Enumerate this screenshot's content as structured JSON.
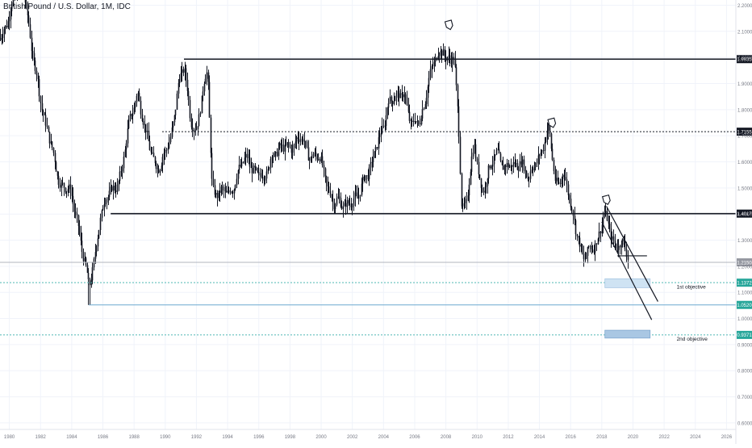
{
  "symbol_title": "British Pound / U.S. Dollar, 1M, IDC",
  "colors": {
    "candle": "#131722",
    "grid": "#f0f3fa",
    "axis_text": "#787b86",
    "price_label_bg": "#131722",
    "teal": "#26a69a",
    "teal_line": "#4fb8b4",
    "blue_line": "#6ca9cf",
    "box_fill_light": "#cfe3f3",
    "box_fill_dark": "#a9c7e3",
    "gray_label": "#9598a1"
  },
  "chart_data": {
    "type": "candlestick",
    "title": "British Pound / U.S. Dollar, 1M, IDC",
    "xlim": [
      1979.4,
      2026.6
    ],
    "ylim": [
      0.575,
      2.22
    ],
    "x_ticks": [
      "1980",
      "1982",
      "1984",
      "1986",
      "1988",
      "1990",
      "1992",
      "1994",
      "1996",
      "1998",
      "2000",
      "2002",
      "2004",
      "2006",
      "2008",
      "2010",
      "2012",
      "2014",
      "2016",
      "2018",
      "2020",
      "2022",
      "2024",
      "2026"
    ],
    "y_ticks": [
      "0.6000",
      "0.7000",
      "0.8000",
      "0.9000",
      "1.0000",
      "1.1000",
      "1.2000",
      "1.3000",
      "1.4000",
      "1.5000",
      "1.6000",
      "1.7000",
      "1.8000",
      "1.9000",
      "2.0000",
      "2.1000",
      "2.2000"
    ],
    "price_path": [
      [
        1979.4,
        2.09
      ],
      [
        1980.0,
        2.15
      ],
      [
        1980.8,
        2.32
      ],
      [
        1981.4,
        2.02
      ],
      [
        1981.8,
        1.92
      ],
      [
        1982.3,
        1.74
      ],
      [
        1982.8,
        1.62
      ],
      [
        1983.3,
        1.52
      ],
      [
        1983.8,
        1.48
      ],
      [
        1984.3,
        1.4
      ],
      [
        1984.8,
        1.22
      ],
      [
        1985.1,
        1.1
      ],
      [
        1985.4,
        1.22
      ],
      [
        1985.8,
        1.4
      ],
      [
        1986.5,
        1.48
      ],
      [
        1987.2,
        1.57
      ],
      [
        1987.8,
        1.78
      ],
      [
        1988.2,
        1.88
      ],
      [
        1988.7,
        1.7
      ],
      [
        1989.2,
        1.62
      ],
      [
        1989.7,
        1.58
      ],
      [
        1990.3,
        1.68
      ],
      [
        1990.8,
        1.9
      ],
      [
        1991.2,
        1.95
      ],
      [
        1991.6,
        1.77
      ],
      [
        1992.0,
        1.73
      ],
      [
        1992.7,
        1.95
      ],
      [
        1993.0,
        1.51
      ],
      [
        1993.5,
        1.47
      ],
      [
        1994.0,
        1.48
      ],
      [
        1994.8,
        1.57
      ],
      [
        1995.3,
        1.62
      ],
      [
        1995.8,
        1.56
      ],
      [
        1996.3,
        1.52
      ],
      [
        1996.8,
        1.64
      ],
      [
        1997.3,
        1.63
      ],
      [
        1997.8,
        1.67
      ],
      [
        1998.3,
        1.67
      ],
      [
        1998.8,
        1.68
      ],
      [
        1999.3,
        1.63
      ],
      [
        1999.8,
        1.61
      ],
      [
        2000.3,
        1.54
      ],
      [
        2000.8,
        1.44
      ],
      [
        2001.3,
        1.43
      ],
      [
        2001.8,
        1.46
      ],
      [
        2002.3,
        1.44
      ],
      [
        2002.8,
        1.56
      ],
      [
        2003.3,
        1.6
      ],
      [
        2003.8,
        1.7
      ],
      [
        2004.3,
        1.84
      ],
      [
        2004.8,
        1.83
      ],
      [
        2005.3,
        1.88
      ],
      [
        2005.8,
        1.73
      ],
      [
        2006.3,
        1.75
      ],
      [
        2006.8,
        1.9
      ],
      [
        2007.3,
        1.98
      ],
      [
        2007.8,
        2.05
      ],
      [
        2008.0,
        2.0
      ],
      [
        2008.5,
        1.98
      ],
      [
        2008.8,
        1.75
      ],
      [
        2009.0,
        1.43
      ],
      [
        2009.3,
        1.45
      ],
      [
        2009.8,
        1.65
      ],
      [
        2010.3,
        1.5
      ],
      [
        2010.8,
        1.56
      ],
      [
        2011.3,
        1.64
      ],
      [
        2011.8,
        1.58
      ],
      [
        2012.3,
        1.57
      ],
      [
        2012.8,
        1.62
      ],
      [
        2013.3,
        1.52
      ],
      [
        2013.8,
        1.61
      ],
      [
        2014.3,
        1.68
      ],
      [
        2014.6,
        1.71
      ],
      [
        2015.0,
        1.52
      ],
      [
        2015.5,
        1.56
      ],
      [
        2016.0,
        1.42
      ],
      [
        2016.5,
        1.32
      ],
      [
        2016.8,
        1.22
      ],
      [
        2017.3,
        1.26
      ],
      [
        2017.8,
        1.33
      ],
      [
        2018.1,
        1.4
      ],
      [
        2018.4,
        1.34
      ],
      [
        2018.8,
        1.29
      ],
      [
        2019.2,
        1.3
      ],
      [
        2019.5,
        1.25
      ],
      [
        2019.7,
        1.215
      ]
    ],
    "lows": [
      [
        1985.1,
        1.052
      ],
      [
        2016.8,
        1.198
      ]
    ],
    "horizontal_levels": [
      {
        "price": 1.9935,
        "label": "1.9935",
        "style": "solid-black",
        "from_x": 1991.2
      },
      {
        "price": 1.7155,
        "label": "1.7155",
        "style": "dotted",
        "from_x": 1989.8
      },
      {
        "price": 1.4017,
        "label": "1.4017",
        "style": "solid-black",
        "from_x": 1986.5
      },
      {
        "price": 1.215,
        "label": "1.2150",
        "style": "current-price"
      },
      {
        "price": 1.1372,
        "label": "1.1372",
        "style": "teal-dotted",
        "from_x": 1979.4
      },
      {
        "price": 1.052,
        "label": "1.0520",
        "style": "blue-solid",
        "from_x": 1985.1
      },
      {
        "price": 0.9371,
        "label": "0.9371",
        "style": "teal-dotted",
        "from_x": 1979.4
      }
    ],
    "annotations": [
      {
        "text": "1st objective",
        "x": 2022.8,
        "y": 1.115
      },
      {
        "text": "2nd objective",
        "x": 2022.8,
        "y": 0.915
      }
    ],
    "objective_boxes": [
      {
        "x0": 2018.2,
        "x1": 2021.1,
        "y0": 1.152,
        "y1": 1.118,
        "shade": "light"
      },
      {
        "x0": 2018.2,
        "x1": 2021.1,
        "y0": 0.955,
        "y1": 0.925,
        "shade": "dark"
      }
    ],
    "channel_lines": [
      [
        [
          2018.3,
          1.43
        ],
        [
          2021.6,
          1.065
        ]
      ],
      [
        [
          2018.0,
          1.37
        ],
        [
          2021.2,
          0.995
        ]
      ],
      [
        [
          2019.0,
          1.24
        ],
        [
          2020.9,
          1.24
        ]
      ]
    ],
    "peak_markers": [
      [
        2008.2,
        2.115
      ],
      [
        2014.8,
        1.74
      ],
      [
        2018.3,
        1.445
      ]
    ]
  }
}
